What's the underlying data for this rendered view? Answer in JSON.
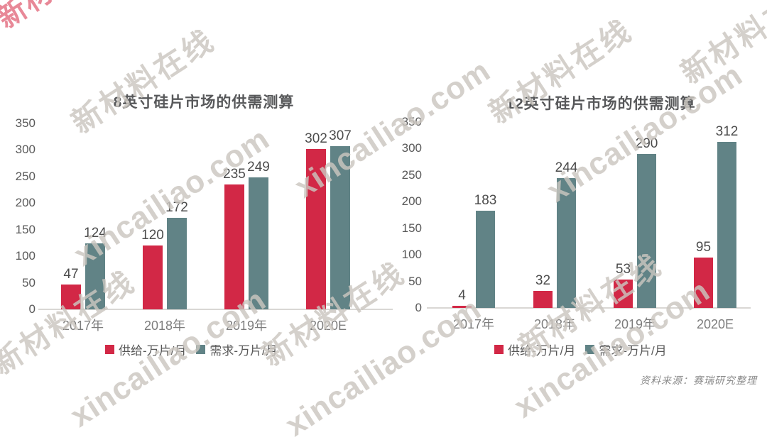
{
  "source_note": "资料来源：赛瑞研究整理",
  "colors": {
    "supply": "#d22846",
    "demand": "#618386",
    "axis_line": "#d9d7d4",
    "value_label": "#4c4c4c",
    "category_label": "#7d7d7d",
    "watermark": "#cac6bf"
  },
  "watermark": {
    "cn_text": "新材料在线",
    "latin_text": "xincailiao.com",
    "corner_fragment": "新材"
  },
  "chart_data": [
    {
      "type": "bar",
      "title": "8英寸硅片市场的供需测算",
      "categories": [
        "2017年",
        "2018年",
        "2019年",
        "2020E"
      ],
      "series": [
        {
          "name": "供给-万片/月",
          "color": "#d22846",
          "values": [
            47,
            120,
            235,
            302
          ]
        },
        {
          "name": "需求-万片/月",
          "color": "#618386",
          "values": [
            124,
            172,
            249,
            307
          ]
        }
      ],
      "ylim": [
        0,
        350
      ],
      "ytick_step": 50,
      "grid": false,
      "legend_position": "bottom"
    },
    {
      "type": "bar",
      "title": "12英寸硅片市场的供需测算",
      "categories": [
        "2017年",
        "2018年",
        "2019年",
        "2020E"
      ],
      "series": [
        {
          "name": "供给-万片/月",
          "color": "#d22846",
          "values": [
            4,
            32,
            53,
            95
          ]
        },
        {
          "name": "需求-万片/月",
          "color": "#618386",
          "values": [
            183,
            244,
            290,
            312
          ]
        }
      ],
      "ylim": [
        0,
        350
      ],
      "ytick_step": 50,
      "grid": false,
      "legend_position": "bottom"
    }
  ]
}
